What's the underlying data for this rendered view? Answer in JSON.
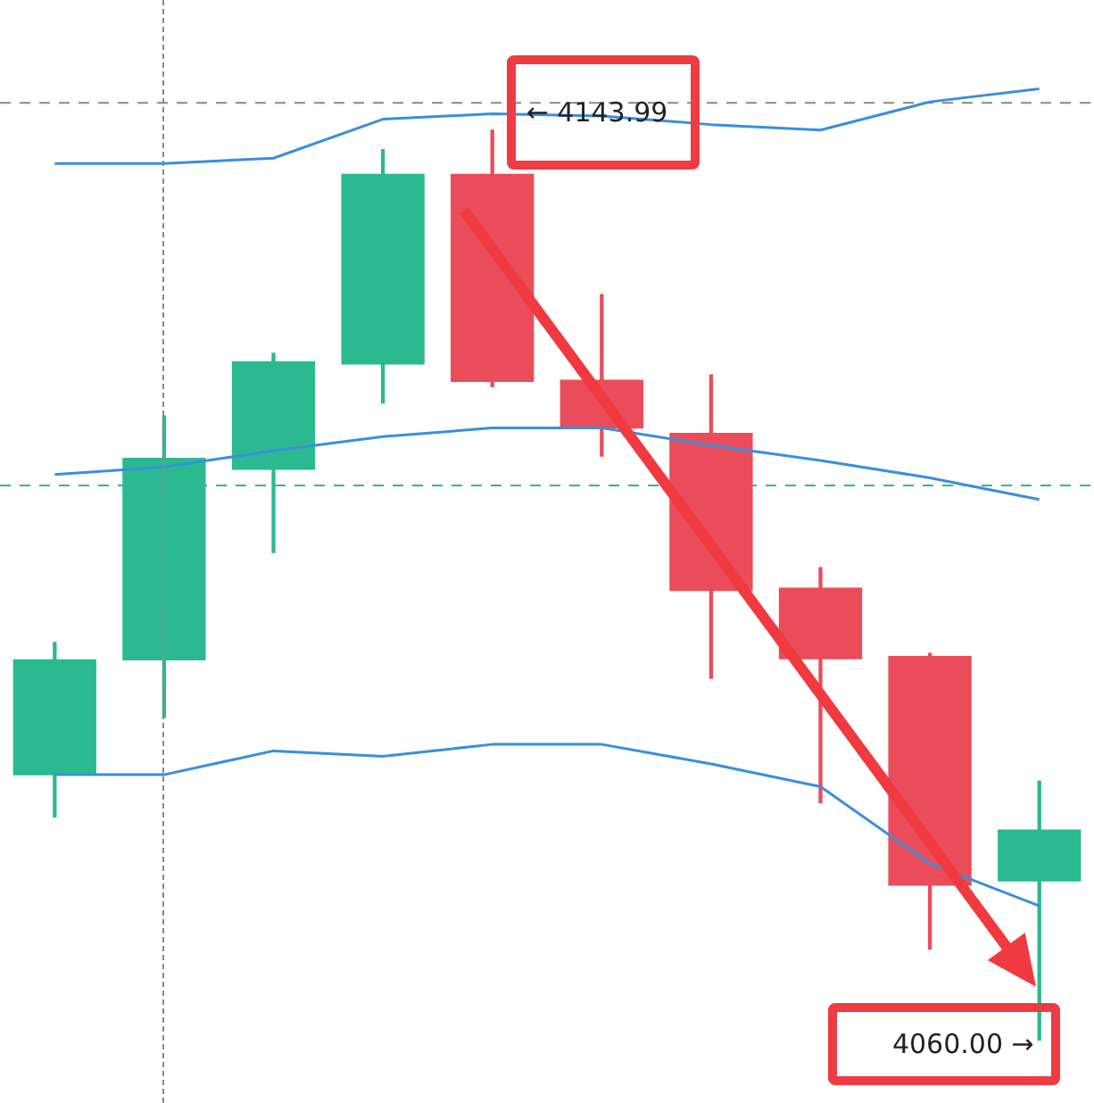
{
  "chart_data": {
    "type": "candlestick",
    "categories": [
      null,
      null,
      null,
      null,
      null,
      null,
      null,
      null,
      null,
      null
    ],
    "ylim": [
      4054.2,
      4156.0
    ],
    "tick_labels": false,
    "ohlc": [
      [
        4084.5,
        4096.7,
        4080.6,
        4095.1
      ],
      [
        4095.1,
        4117.6,
        4089.8,
        4113.7
      ],
      [
        4112.7,
        4123.4,
        4105.0,
        4122.6
      ],
      [
        4122.4,
        4142.2,
        4118.8,
        4139.9
      ],
      [
        4139.9,
        4143.99,
        4120.3,
        4120.8
      ],
      [
        4120.9,
        4128.8,
        4113.9,
        4116.5
      ],
      [
        4116.0,
        4121.4,
        4093.4,
        4101.5
      ],
      [
        4101.7,
        4103.6,
        4081.9,
        4095.2
      ],
      [
        4095.4,
        4095.7,
        4068.4,
        4074.3
      ],
      [
        4074.7,
        4083.9,
        4060.0,
        4079.4
      ]
    ],
    "colors": [
      "#2bba8f",
      "#2bba8f",
      "#2bba8f",
      "#2bba8f",
      "#ea4c5a",
      "#ea4c5a",
      "#ea4c5a",
      "#ea4c5a",
      "#ea4c5a",
      "#2bba8f"
    ],
    "series": [
      {
        "type": "line",
        "color": "#3a8fdc",
        "values": [
          4140.9,
          4140.9,
          4141.4,
          4145.0,
          4145.5,
          4145.3,
          4144.5,
          4144.0,
          4146.6,
          4147.8
        ]
      },
      {
        "type": "line",
        "color": "#3a8fdc",
        "values": [
          4112.2,
          4112.9,
          4114.4,
          4115.7,
          4116.5,
          4116.5,
          4114.9,
          4113.5,
          4111.9,
          4109.9
        ]
      },
      {
        "type": "line",
        "color": "#3a8fdc",
        "values": [
          4084.5,
          4084.5,
          4086.7,
          4086.2,
          4087.3,
          4087.3,
          4085.5,
          4083.4,
          4076.3,
          4072.4
        ]
      }
    ],
    "ref_lines": [
      {
        "axis": "y",
        "value": 4146.5,
        "color": "#888888",
        "line_style": "dashed"
      },
      {
        "axis": "y",
        "value": 4111.2,
        "color": "#2bba8f",
        "line_style": "dashed"
      }
    ],
    "annotations": [
      "← 4143.99",
      "4060.00 →"
    ]
  }
}
